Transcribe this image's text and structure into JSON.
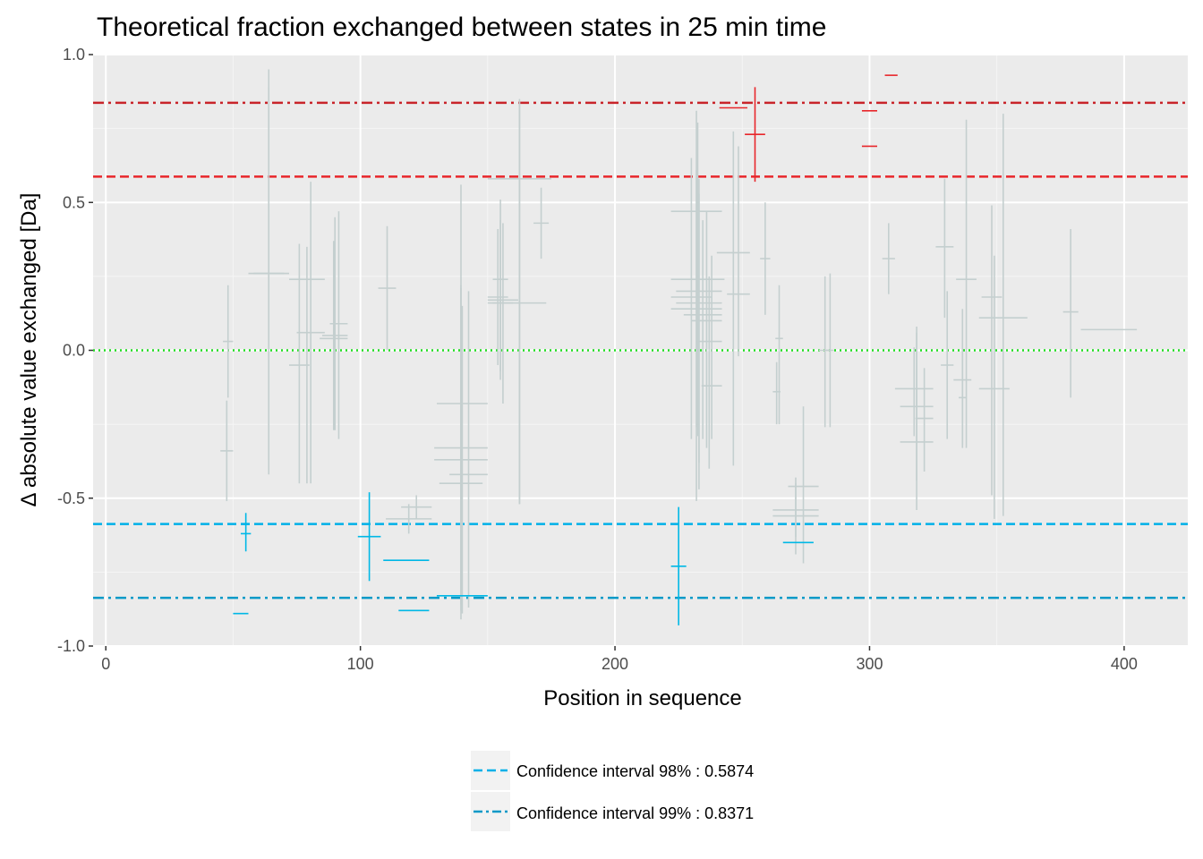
{
  "chart_data": {
    "type": "scatter",
    "title": "Theoretical fraction exchanged between states in 25 min time",
    "xlabel": "Position in sequence",
    "ylabel": "Δ absolute value exchanged [Da]",
    "xlim": [
      -5,
      425
    ],
    "ylim": [
      -1.0,
      1.0
    ],
    "x_ticks": [
      0,
      100,
      200,
      300,
      400
    ],
    "y_ticks": [
      1.0,
      0.5,
      0.0,
      -0.5,
      -1.0
    ],
    "y_tick_labels": [
      "1.0",
      "0.5",
      "0.0",
      "-0.5",
      "-1.0"
    ],
    "grid": true,
    "legend_position": "bottom",
    "colors": {
      "nonsig": "#c4cfcf",
      "positive": "#e8262b",
      "negative": "#00b8e6",
      "ci98_pos": "#e8262b",
      "ci99_pos": "#c8242a",
      "ci98_neg": "#00b0e8",
      "ci99_neg": "#0599c7",
      "zero": "#22dd22",
      "panel": "#ebebeb",
      "grid": "#ffffff"
    },
    "reference_lines": [
      {
        "y": 0.8371,
        "style": "dotdash",
        "color": "#c8242a"
      },
      {
        "y": 0.5874,
        "style": "dashed",
        "color": "#e8262b"
      },
      {
        "y": 0.0,
        "style": "dotted",
        "color": "#22dd22"
      },
      {
        "y": -0.5874,
        "style": "dashed",
        "color": "#00b0e8"
      },
      {
        "y": -0.8371,
        "style": "dotdash",
        "color": "#0599c7"
      }
    ],
    "legend": [
      {
        "label": "Confidence interval 98% : 0.5874",
        "style": "dashed"
      },
      {
        "label": "Confidence interval 99% : 0.8371",
        "style": "dotdash"
      }
    ],
    "series": [
      {
        "group": "nonsignificant",
        "points": [
          {
            "x1": 46,
            "x2": 50,
            "y": 0.03,
            "ymin": -0.16,
            "ymax": 0.22
          },
          {
            "x1": 45,
            "x2": 50,
            "y": -0.34,
            "ymin": -0.51,
            "ymax": -0.17
          },
          {
            "x1": 56,
            "x2": 72,
            "y": 0.26,
            "ymin": -0.37,
            "ymax": 0.89
          },
          {
            "x1": 58,
            "x2": 70,
            "y": 0.26,
            "ymin": -0.42,
            "ymax": 0.95
          },
          {
            "x1": 72,
            "x2": 86,
            "y": 0.24,
            "ymin": -0.45,
            "ymax": 0.35
          },
          {
            "x1": 72,
            "x2": 80,
            "y": -0.05,
            "ymin": -0.45,
            "ymax": 0.36
          },
          {
            "x1": 75,
            "x2": 86,
            "y": 0.06,
            "ymin": -0.45,
            "ymax": 0.57
          },
          {
            "x1": 84,
            "x2": 95,
            "y": 0.04,
            "ymin": -0.27,
            "ymax": 0.37
          },
          {
            "x1": 85,
            "x2": 95,
            "y": 0.05,
            "ymin": -0.27,
            "ymax": 0.45
          },
          {
            "x1": 88,
            "x2": 95,
            "y": 0.09,
            "ymin": -0.3,
            "ymax": 0.47
          },
          {
            "x1": 107,
            "x2": 114,
            "y": 0.21,
            "ymin": 0.0,
            "ymax": 0.42
          },
          {
            "x1": 110,
            "x2": 128,
            "y": -0.57,
            "ymin": -0.62,
            "ymax": -0.52
          },
          {
            "x1": 116,
            "x2": 128,
            "y": -0.53,
            "ymin": -0.57,
            "ymax": -0.49
          },
          {
            "x1": 129,
            "x2": 150,
            "y": -0.33,
            "ymin": -0.91,
            "ymax": 0.22
          },
          {
            "x1": 129,
            "x2": 150,
            "y": -0.37,
            "ymin": -0.88,
            "ymax": 0.21
          },
          {
            "x1": 131,
            "x2": 148,
            "y": -0.45,
            "ymin": -0.86,
            "ymax": 0.56
          },
          {
            "x1": 130,
            "x2": 150,
            "y": -0.18,
            "ymin": -0.89,
            "ymax": 0.15
          },
          {
            "x1": 135,
            "x2": 150,
            "y": -0.42,
            "ymin": -0.87,
            "ymax": 0.2
          },
          {
            "x1": 150,
            "x2": 158,
            "y": 0.18,
            "ymin": -0.05,
            "ymax": 0.41
          },
          {
            "x1": 150,
            "x2": 160,
            "y": 0.16,
            "ymin": -0.07,
            "ymax": 0.44
          },
          {
            "x1": 152,
            "x2": 158,
            "y": 0.24,
            "ymin": -0.1,
            "ymax": 0.51
          },
          {
            "x1": 150,
            "x2": 162,
            "y": 0.17,
            "ymin": -0.18,
            "ymax": 0.43
          },
          {
            "x1": 150,
            "x2": 175,
            "y": 0.58,
            "ymin": -0.52,
            "ymax": 0.85
          },
          {
            "x1": 152,
            "x2": 173,
            "y": 0.16,
            "ymin": -0.52,
            "ymax": 0.84
          },
          {
            "x1": 168,
            "x2": 174,
            "y": 0.43,
            "ymin": 0.31,
            "ymax": 0.55
          },
          {
            "x1": 222,
            "x2": 242,
            "y": 0.47,
            "ymin": -0.26,
            "ymax": 0.61
          },
          {
            "x1": 222,
            "x2": 243,
            "y": 0.24,
            "ymin": -0.29,
            "ymax": 0.77
          },
          {
            "x1": 222,
            "x2": 238,
            "y": 0.18,
            "ymin": -0.3,
            "ymax": 0.65
          },
          {
            "x1": 222,
            "x2": 242,
            "y": 0.14,
            "ymin": -0.51,
            "ymax": 0.81
          },
          {
            "x1": 224,
            "x2": 242,
            "y": 0.2,
            "ymin": -0.47,
            "ymax": 0.58
          },
          {
            "x1": 224,
            "x2": 242,
            "y": 0.16,
            "ymin": -0.38,
            "ymax": 0.53
          },
          {
            "x1": 227,
            "x2": 242,
            "y": 0.12,
            "ymin": -0.3,
            "ymax": 0.44
          },
          {
            "x1": 230,
            "x2": 242,
            "y": 0.1,
            "ymin": -0.33,
            "ymax": 0.47
          },
          {
            "x1": 232,
            "x2": 242,
            "y": 0.03,
            "ymin": -0.4,
            "ymax": 0.25
          },
          {
            "x1": 234,
            "x2": 242,
            "y": -0.12,
            "ymin": -0.3,
            "ymax": 0.32
          },
          {
            "x1": 240,
            "x2": 253,
            "y": 0.33,
            "ymin": -0.39,
            "ymax": 0.74
          },
          {
            "x1": 244,
            "x2": 253,
            "y": 0.19,
            "ymin": -0.02,
            "ymax": 0.69
          },
          {
            "x1": 257,
            "x2": 261,
            "y": 0.31,
            "ymin": 0.12,
            "ymax": 0.5
          },
          {
            "x1": 263,
            "x2": 266,
            "y": 0.04,
            "ymin": -0.25,
            "ymax": 0.22
          },
          {
            "x1": 262,
            "x2": 265,
            "y": -0.14,
            "ymin": -0.25,
            "ymax": -0.04
          },
          {
            "x1": 262,
            "x2": 280,
            "y": -0.54,
            "ymin": -0.63,
            "ymax": -0.45
          },
          {
            "x1": 262,
            "x2": 280,
            "y": -0.56,
            "ymin": -0.69,
            "ymax": -0.43
          },
          {
            "x1": 268,
            "x2": 280,
            "y": -0.46,
            "ymin": -0.72,
            "ymax": -0.19
          },
          {
            "x1": 280,
            "x2": 285,
            "y": 0.0,
            "ymin": -0.26,
            "ymax": 0.25
          },
          {
            "x1": 283,
            "x2": 286,
            "y": 0.0,
            "ymin": -0.26,
            "ymax": 0.26
          },
          {
            "x1": 305,
            "x2": 310,
            "y": 0.31,
            "ymin": 0.19,
            "ymax": 0.43
          },
          {
            "x1": 310,
            "x2": 325,
            "y": -0.13,
            "ymin": -0.29,
            "ymax": 0.01
          },
          {
            "x1": 312,
            "x2": 325,
            "y": -0.19,
            "ymin": -0.44,
            "ymax": 0.08
          },
          {
            "x1": 312,
            "x2": 325,
            "y": -0.31,
            "ymin": -0.54,
            "ymax": 0.06
          },
          {
            "x1": 318,
            "x2": 325,
            "y": -0.23,
            "ymin": -0.41,
            "ymax": -0.06
          },
          {
            "x1": 326,
            "x2": 333,
            "y": 0.35,
            "ymin": 0.11,
            "ymax": 0.58
          },
          {
            "x1": 328,
            "x2": 333,
            "y": -0.05,
            "ymin": -0.3,
            "ymax": 0.2
          },
          {
            "x1": 333,
            "x2": 340,
            "y": -0.1,
            "ymin": -0.33,
            "ymax": 0.14
          },
          {
            "x1": 334,
            "x2": 342,
            "y": 0.24,
            "ymin": -0.33,
            "ymax": 0.78
          },
          {
            "x1": 335,
            "x2": 338,
            "y": -0.16,
            "ymin": -0.32,
            "ymax": 0.0
          },
          {
            "x1": 344,
            "x2": 352,
            "y": 0.18,
            "ymin": -0.49,
            "ymax": 0.49
          },
          {
            "x1": 343,
            "x2": 355,
            "y": -0.13,
            "ymin": -0.57,
            "ymax": 0.32
          },
          {
            "x1": 343,
            "x2": 362,
            "y": 0.11,
            "ymin": -0.56,
            "ymax": 0.8
          },
          {
            "x1": 376,
            "x2": 382,
            "y": 0.13,
            "ymin": -0.16,
            "ymax": 0.41
          },
          {
            "x1": 383,
            "x2": 405,
            "y": 0.07,
            "ymin": 0.07,
            "ymax": 0.07
          }
        ]
      },
      {
        "group": "positive",
        "points": [
          {
            "x1": 241,
            "x2": 252,
            "y": 0.82,
            "ymin": 0.82,
            "ymax": 0.82
          },
          {
            "x1": 251,
            "x2": 259,
            "y": 0.73,
            "ymin": 0.57,
            "ymax": 0.89
          },
          {
            "x1": 297,
            "x2": 303,
            "y": 0.81,
            "ymin": 0.81,
            "ymax": 0.81
          },
          {
            "x1": 297,
            "x2": 303,
            "y": 0.69,
            "ymin": 0.69,
            "ymax": 0.69
          },
          {
            "x1": 306,
            "x2": 311,
            "y": 0.93,
            "ymin": 0.93,
            "ymax": 0.93
          }
        ]
      },
      {
        "group": "negative",
        "points": [
          {
            "x1": 53,
            "x2": 57,
            "y": -0.62,
            "ymin": -0.68,
            "ymax": -0.55
          },
          {
            "x1": 50,
            "x2": 56,
            "y": -0.89,
            "ymin": -0.89,
            "ymax": -0.89
          },
          {
            "x1": 99,
            "x2": 108,
            "y": -0.63,
            "ymin": -0.78,
            "ymax": -0.48
          },
          {
            "x1": 109,
            "x2": 127,
            "y": -0.71,
            "ymin": -0.71,
            "ymax": -0.71
          },
          {
            "x1": 115,
            "x2": 127,
            "y": -0.88,
            "ymin": -0.88,
            "ymax": -0.88
          },
          {
            "x1": 130,
            "x2": 150,
            "y": -0.83,
            "ymin": -0.83,
            "ymax": -0.83
          },
          {
            "x1": 222,
            "x2": 228,
            "y": -0.73,
            "ymin": -0.93,
            "ymax": -0.53
          },
          {
            "x1": 266,
            "x2": 278,
            "y": -0.65,
            "ymin": -0.65,
            "ymax": -0.65
          }
        ]
      }
    ]
  }
}
